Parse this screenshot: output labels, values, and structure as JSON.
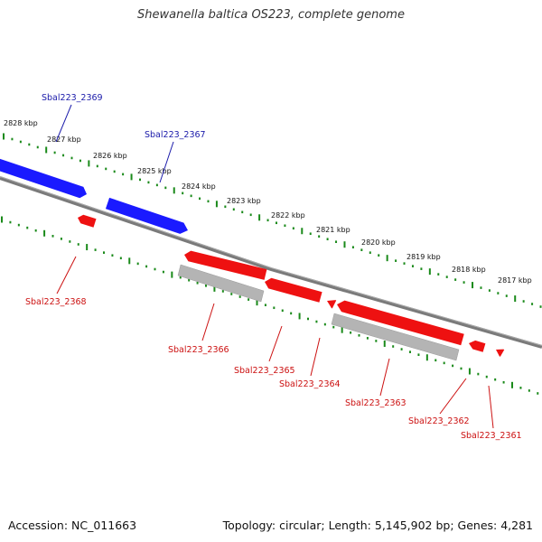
{
  "title": "Shewanella baltica OS223, complete genome",
  "footer": {
    "accession": "Accession: NC_011663",
    "topology": "Topology: circular; Length: 5,145,902 bp; Genes: 4,281"
  },
  "colors": {
    "forward": "#1a1aff",
    "reverse": "#ee1111",
    "pseudo": "#b4b4b4",
    "ruler": "#1a8a1a",
    "backbone": "#7a7a7a",
    "forward_label": "#1a1aaa",
    "reverse_label": "#cc1111"
  },
  "ruler_labels": [
    "2828 kbp",
    "2827 kbp",
    "2826 kbp",
    "2825 kbp",
    "2824 kbp",
    "2823 kbp",
    "2822 kbp",
    "2821 kbp",
    "2820 kbp",
    "2819 kbp",
    "2818 kbp",
    "2817 kbp"
  ],
  "genes": [
    {
      "id": "Sbal223_2369",
      "strand": "forward"
    },
    {
      "id": "Sbal223_2367",
      "strand": "forward"
    },
    {
      "id": "Sbal223_2368",
      "strand": "reverse"
    },
    {
      "id": "Sbal223_2366",
      "strand": "reverse"
    },
    {
      "id": "Sbal223_2365",
      "strand": "reverse"
    },
    {
      "id": "Sbal223_2364",
      "strand": "reverse"
    },
    {
      "id": "Sbal223_2363",
      "strand": "reverse"
    },
    {
      "id": "Sbal223_2362",
      "strand": "reverse"
    },
    {
      "id": "Sbal223_2361",
      "strand": "reverse"
    }
  ]
}
